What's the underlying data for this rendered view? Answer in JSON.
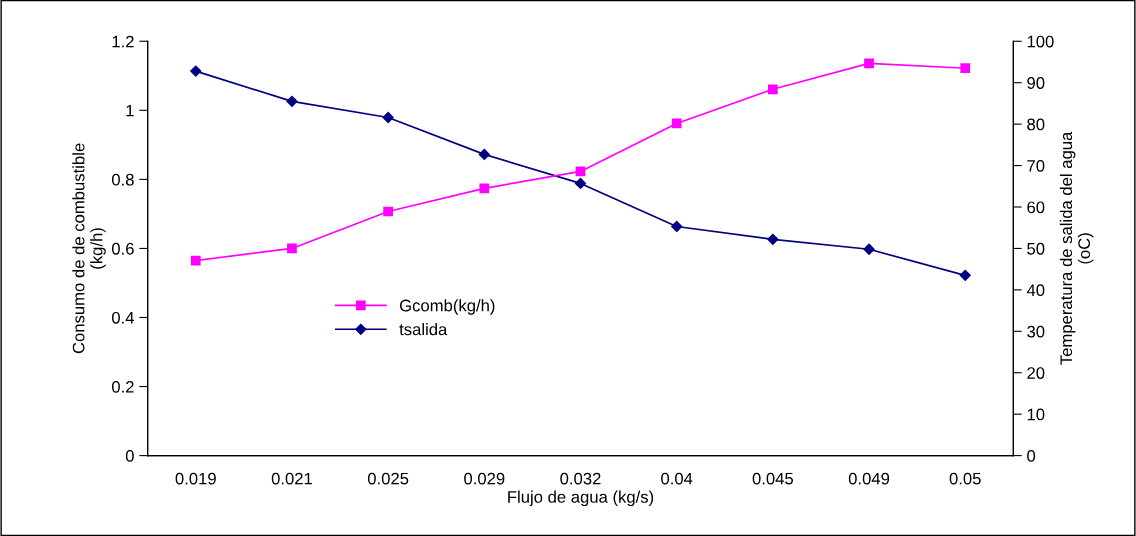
{
  "chart_data": {
    "type": "line",
    "xlabel": "Flujo de agua (kg/s)",
    "ylabel": "Consumo de de combustible\n(kg/h)",
    "y2label": "Temperatura de salida del agua\n(oC)",
    "categories": [
      "0.019",
      "0.021",
      "0.025",
      "0.029",
      "0.032",
      "0.04",
      "0.045",
      "0.049",
      "0.05"
    ],
    "series": [
      {
        "name": "Gcomb(kg/h)",
        "color": "#ff00ff",
        "marker": "square",
        "values": [
          0.565,
          0.6,
          0.707,
          0.774,
          0.823,
          0.962,
          1.061,
          1.136,
          1.122
        ]
      },
      {
        "name": "tsalida",
        "color": "#000080",
        "marker": "diamond",
        "axis": "y2",
        "values": [
          92.8,
          85.5,
          81.6,
          72.7,
          65.7,
          55.3,
          52.2,
          49.8,
          43.5
        ]
      }
    ],
    "ylim": [
      0,
      1.2
    ],
    "yticks": [
      0,
      {
        "value": 0.2,
        "label": "0.2"
      },
      {
        "value": 0.4,
        "label": "0.4"
      },
      {
        "value": 0.6,
        "label": "0.6"
      },
      {
        "value": 0.8,
        "label": "0.8"
      },
      1,
      {
        "value": 1.2,
        "label": "1.2"
      }
    ],
    "y2lim": [
      0,
      100
    ],
    "y2ticks": [
      0,
      10,
      20,
      30,
      40,
      50,
      60,
      70,
      80,
      90,
      100
    ],
    "grid": false,
    "legend": "center",
    "line_style": "solid"
  }
}
